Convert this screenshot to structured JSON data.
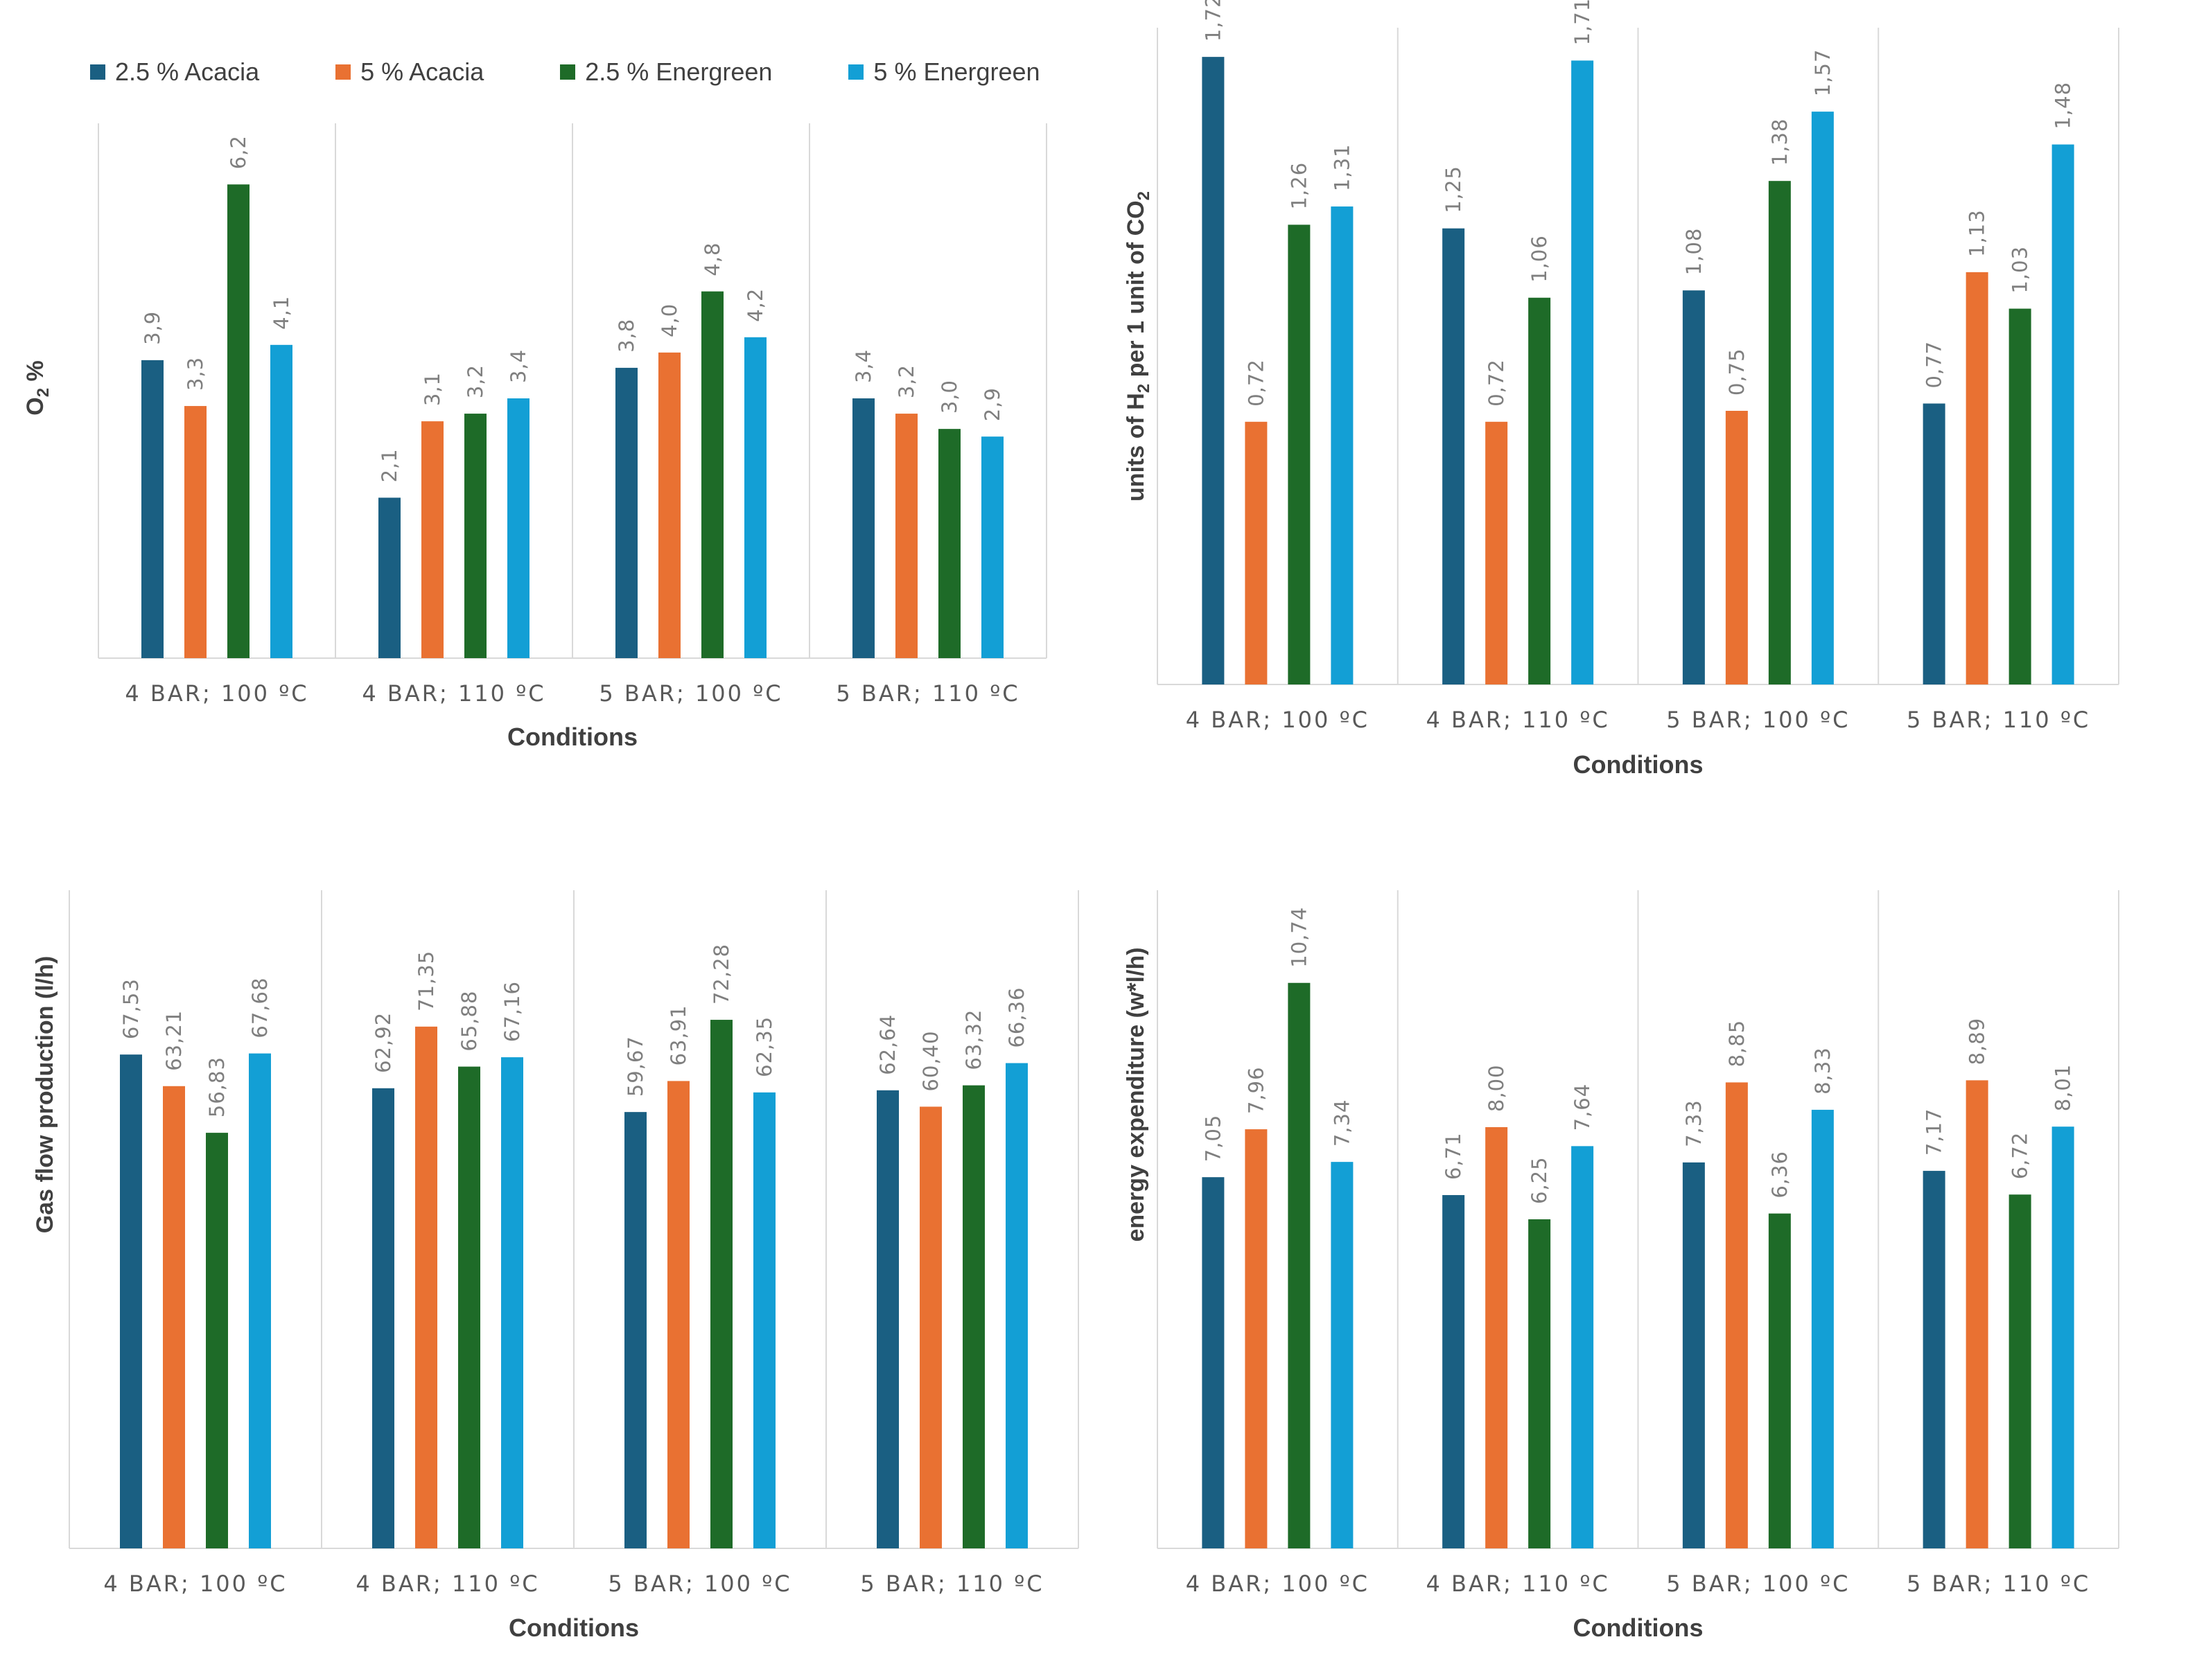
{
  "legend": [
    {
      "label": "2.5 % Acacia",
      "color": "#1a5f82"
    },
    {
      "label": "5 % Acacia",
      "color": "#e97132"
    },
    {
      "label": "2.5 % Energreen",
      "color": "#1e6b28"
    },
    {
      "label": "5 % Energreen",
      "color": "#139fd5"
    }
  ],
  "chart_data": [
    {
      "type": "bar",
      "categories": [
        "4 BAR; 100 ºC",
        "4 BAR; 110 ºC",
        "5 BAR; 100 ºC",
        "5 BAR; 110 ºC"
      ],
      "series": [
        {
          "name": "2.5 % Acacia",
          "values": [
            3.9,
            2.1,
            3.8,
            3.4
          ],
          "labels": [
            "3,9",
            "2,1",
            "3,8",
            "3,4"
          ]
        },
        {
          "name": "5 % Acacia",
          "values": [
            3.3,
            3.1,
            4.0,
            3.2
          ],
          "labels": [
            "3,3",
            "3,1",
            "4,0",
            "3,2"
          ]
        },
        {
          "name": "2.5 % Energreen",
          "values": [
            6.2,
            3.2,
            4.8,
            3.0
          ],
          "labels": [
            "6,2",
            "3,2",
            "4,8",
            "3,0"
          ]
        },
        {
          "name": "5 % Energreen",
          "values": [
            4.1,
            3.4,
            4.2,
            2.9
          ],
          "labels": [
            "4,1",
            "3,4",
            "4,2",
            "2,9"
          ]
        }
      ],
      "xlabel": "Conditions",
      "ylabel": "O",
      "ylabel_sub": "2",
      "ylabel_suffix": " %",
      "ylim": [
        0,
        7
      ]
    },
    {
      "type": "bar",
      "categories": [
        "4 BAR; 100 ºC",
        "4 BAR; 110 ºC",
        "5 BAR; 100 ºC",
        "5 BAR; 110 ºC"
      ],
      "series": [
        {
          "name": "2.5 % Acacia",
          "values": [
            1.72,
            1.25,
            1.08,
            0.77
          ],
          "labels": [
            "1,72",
            "1,25",
            "1,08",
            "0,77"
          ]
        },
        {
          "name": "5 % Acacia",
          "values": [
            0.72,
            0.72,
            0.75,
            1.13
          ],
          "labels": [
            "0,72",
            "0,72",
            "0,75",
            "1,13"
          ]
        },
        {
          "name": "2.5 % Energreen",
          "values": [
            1.26,
            1.06,
            1.38,
            1.03
          ],
          "labels": [
            "1,26",
            "1,06",
            "1,38",
            "1,03"
          ]
        },
        {
          "name": "5 % Energreen",
          "values": [
            1.31,
            1.71,
            1.57,
            1.48
          ],
          "labels": [
            "1,31",
            "1,71",
            "1,57",
            "1,48"
          ]
        }
      ],
      "xlabel": "Conditions",
      "ylabel": "units of H",
      "ylabel_sub": "2",
      "ylabel_suffix": " per 1 unit of CO",
      "ylabel_sub2": "2",
      "ylim": [
        0,
        1.8
      ]
    },
    {
      "type": "bar",
      "categories": [
        "4 BAR; 100 ºC",
        "4 BAR; 110 ºC",
        "5 BAR; 100 ºC",
        "5 BAR; 110 ºC"
      ],
      "series": [
        {
          "name": "2.5 % Acacia",
          "values": [
            67.53,
            62.92,
            59.67,
            62.64
          ],
          "labels": [
            "67,53",
            "62,92",
            "59,67",
            "62,64"
          ]
        },
        {
          "name": "5 % Acacia",
          "values": [
            63.21,
            71.35,
            63.91,
            60.4
          ],
          "labels": [
            "63,21",
            "71,35",
            "63,91",
            "60,40"
          ]
        },
        {
          "name": "2.5 % Energreen",
          "values": [
            56.83,
            65.88,
            72.28,
            63.32
          ],
          "labels": [
            "56,83",
            "65,88",
            "72,28",
            "63,32"
          ]
        },
        {
          "name": "5 % Energreen",
          "values": [
            67.68,
            67.16,
            62.35,
            66.36
          ],
          "labels": [
            "67,68",
            "67,16",
            "62,35",
            "66,36"
          ]
        }
      ],
      "xlabel": "Conditions",
      "ylabel": "Gas flow production (l/h)",
      "ylim": [
        0,
        90
      ]
    },
    {
      "type": "bar",
      "categories": [
        "4 BAR; 100 ºC",
        "4 BAR; 110 ºC",
        "5 BAR; 100 ºC",
        "5 BAR; 110 ºC"
      ],
      "series": [
        {
          "name": "2.5 % Acacia",
          "values": [
            7.05,
            6.71,
            7.33,
            7.17
          ],
          "labels": [
            "7,05",
            "6,71",
            "7,33",
            "7,17"
          ]
        },
        {
          "name": "5 % Acacia",
          "values": [
            7.96,
            8.0,
            8.85,
            8.89
          ],
          "labels": [
            "7,96",
            "8,00",
            "8,85",
            "8,89"
          ]
        },
        {
          "name": "2.5 % Energreen",
          "values": [
            10.74,
            6.25,
            6.36,
            6.72
          ],
          "labels": [
            "10,74",
            "6,25",
            "6,36",
            "6,72"
          ]
        },
        {
          "name": "5 % Energreen",
          "values": [
            7.34,
            7.64,
            8.33,
            8.01
          ],
          "labels": [
            "7,34",
            "7,64",
            "8,33",
            "8,01"
          ]
        }
      ],
      "xlabel": "Conditions",
      "ylabel": "energy expenditure (w*l/h)",
      "ylim": [
        0,
        12.5
      ]
    }
  ]
}
